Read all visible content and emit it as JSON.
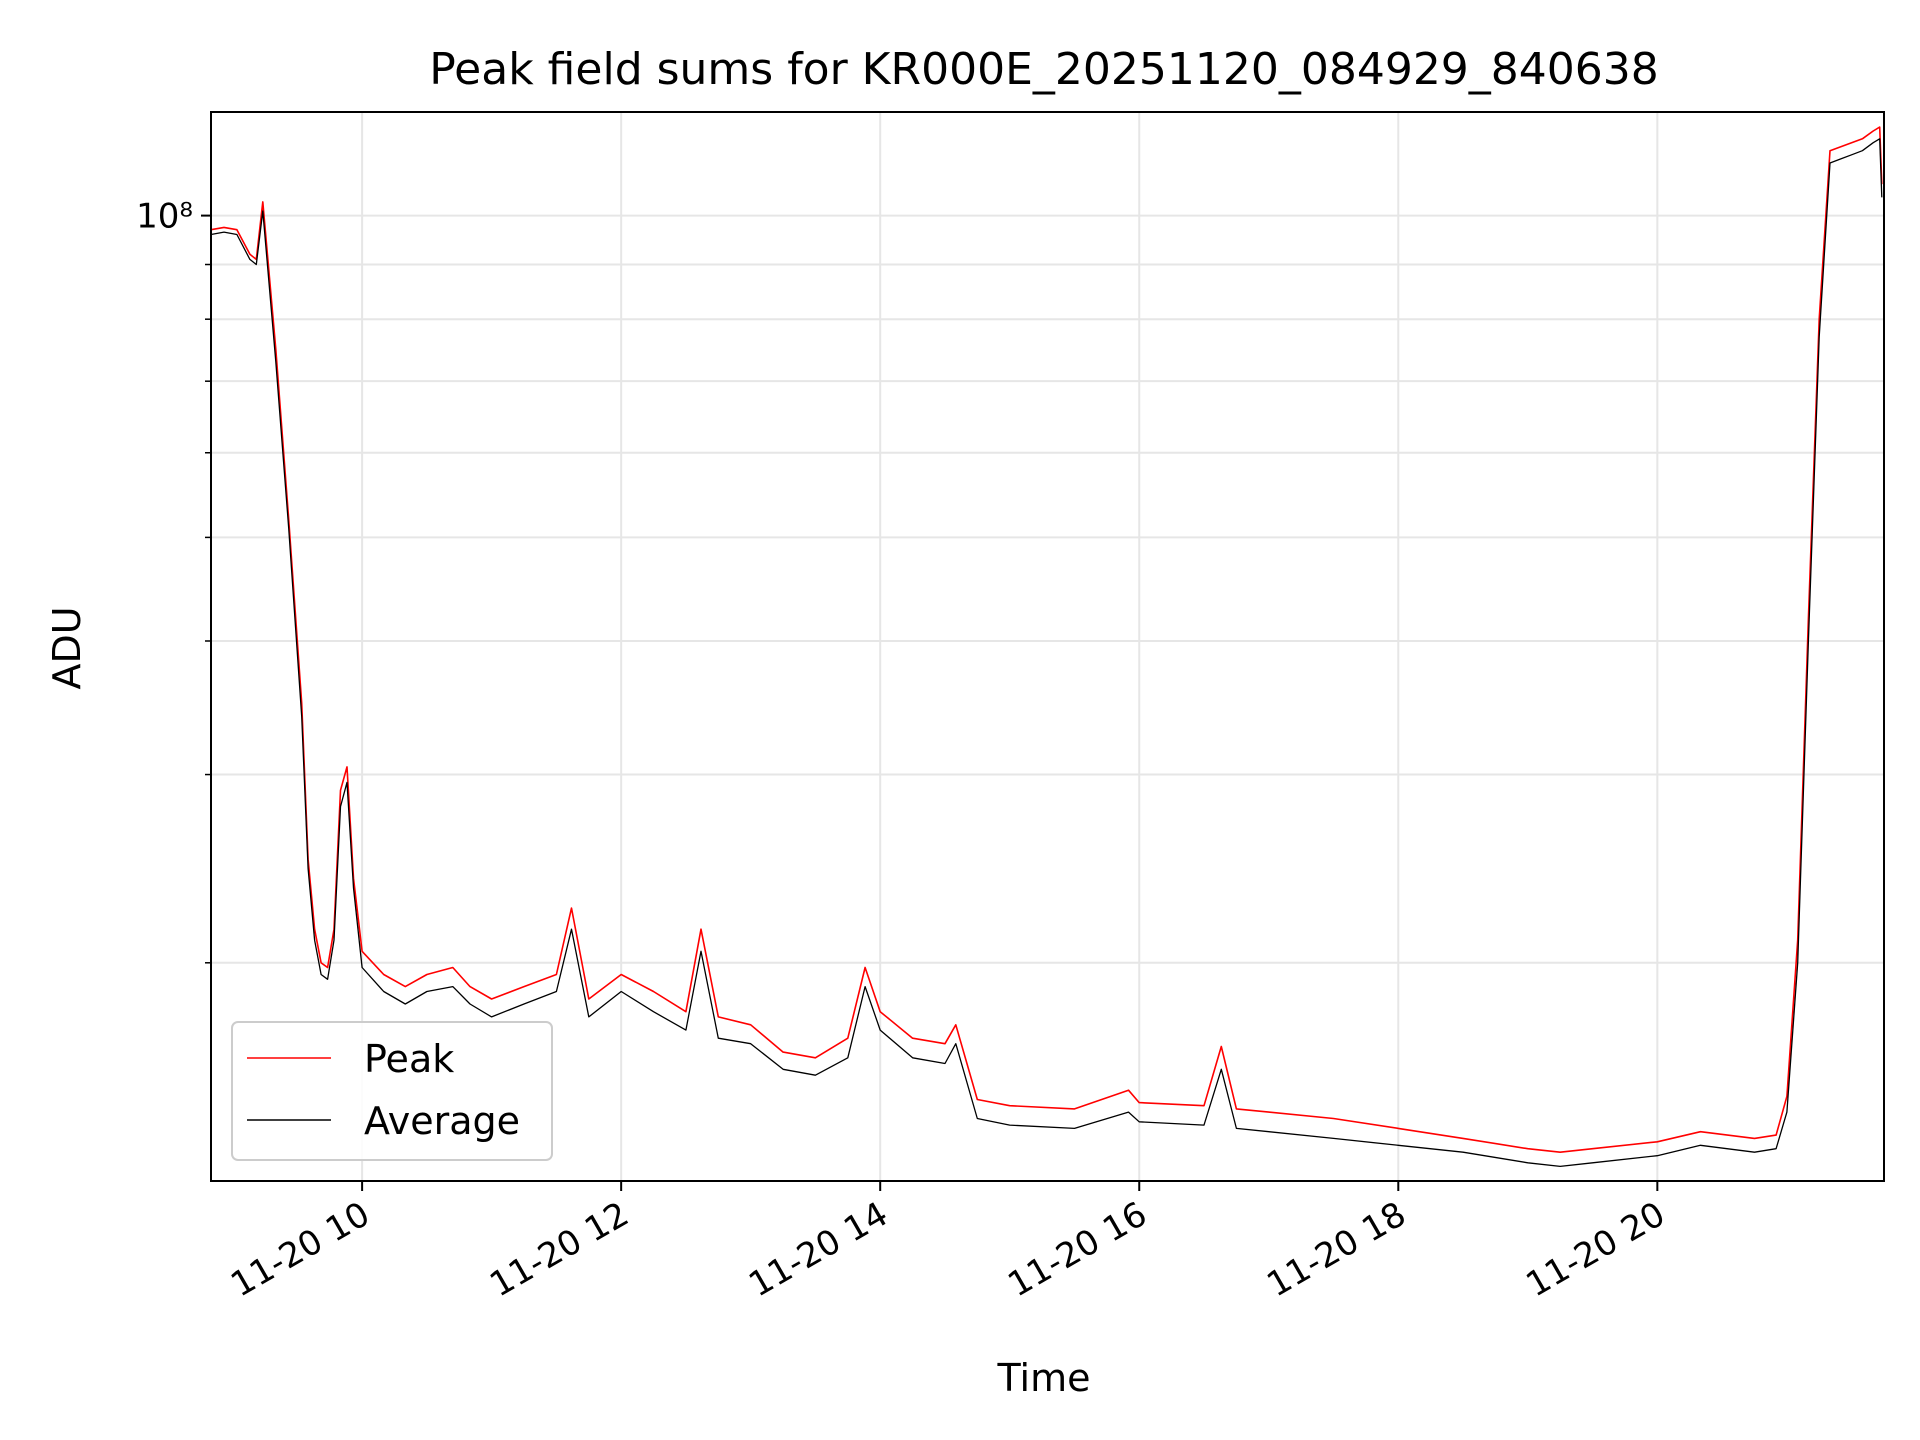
{
  "chart_data": {
    "type": "line",
    "title": "Peak field sums for KR000E_20251120_084929_840638",
    "xlabel": "Time",
    "ylabel": "ADU",
    "yscale": "log",
    "grid": true,
    "legend_position": "lower-left",
    "x_tick_labels": [
      "11-20 10",
      "11-20 12",
      "11-20 14",
      "11-20 16",
      "11-20 18",
      "11-20 20"
    ],
    "x_tick_values": [
      "2025-11-20 10:00",
      "2025-11-20 12:00",
      "2025-11-20 14:00",
      "2025-11-20 16:00",
      "2025-11-20 18:00",
      "2025-11-20 20:00"
    ],
    "xlim": [
      "2025-11-20 08:50",
      "2025-11-20 21:45"
    ],
    "ylim": [
      12500000,
      125000000
    ],
    "y_major_tick_label": "10⁸",
    "y_major_tick_value": 100000000,
    "y_minor_tick_values": [
      20000000,
      30000000,
      40000000,
      50000000,
      60000000,
      70000000,
      80000000,
      90000000
    ],
    "series": [
      {
        "name": "Peak",
        "color": "#ff0000",
        "x": [
          "2025-11-20 08:50",
          "2025-11-20 08:56",
          "2025-11-20 09:02",
          "2025-11-20 09:08",
          "2025-11-20 09:11",
          "2025-11-20 09:14",
          "2025-11-20 09:20",
          "2025-11-20 09:26",
          "2025-11-20 09:32",
          "2025-11-20 09:35",
          "2025-11-20 09:38",
          "2025-11-20 09:41",
          "2025-11-20 09:44",
          "2025-11-20 09:47",
          "2025-11-20 09:50",
          "2025-11-20 09:53",
          "2025-11-20 09:56",
          "2025-11-20 10:00",
          "2025-11-20 10:10",
          "2025-11-20 10:20",
          "2025-11-20 10:30",
          "2025-11-20 10:42",
          "2025-11-20 10:50",
          "2025-11-20 11:00",
          "2025-11-20 11:15",
          "2025-11-20 11:30",
          "2025-11-20 11:37",
          "2025-11-20 11:45",
          "2025-11-20 12:00",
          "2025-11-20 12:15",
          "2025-11-20 12:30",
          "2025-11-20 12:37",
          "2025-11-20 12:45",
          "2025-11-20 13:00",
          "2025-11-20 13:15",
          "2025-11-20 13:30",
          "2025-11-20 13:45",
          "2025-11-20 13:53",
          "2025-11-20 14:00",
          "2025-11-20 14:15",
          "2025-11-20 14:30",
          "2025-11-20 14:35",
          "2025-11-20 14:45",
          "2025-11-20 15:00",
          "2025-11-20 15:30",
          "2025-11-20 15:55",
          "2025-11-20 16:00",
          "2025-11-20 16:30",
          "2025-11-20 16:38",
          "2025-11-20 16:45",
          "2025-11-20 17:00",
          "2025-11-20 17:30",
          "2025-11-20 18:00",
          "2025-11-20 18:30",
          "2025-11-20 19:00",
          "2025-11-20 19:15",
          "2025-11-20 19:30",
          "2025-11-20 20:00",
          "2025-11-20 20:20",
          "2025-11-20 20:45",
          "2025-11-20 20:55",
          "2025-11-20 21:00",
          "2025-11-20 21:05",
          "2025-11-20 21:10",
          "2025-11-20 21:15",
          "2025-11-20 21:20",
          "2025-11-20 21:25",
          "2025-11-20 21:30",
          "2025-11-20 21:35",
          "2025-11-20 21:40",
          "2025-11-20 21:43",
          "2025-11-20 21:44"
        ],
        "y": [
          97000000,
          97500000,
          97000000,
          92000000,
          91000000,
          103000000,
          75000000,
          52000000,
          35000000,
          25000000,
          21500000,
          20000000,
          19800000,
          21500000,
          29000000,
          30500000,
          24000000,
          20500000,
          19500000,
          19000000,
          19500000,
          19800000,
          19000000,
          18500000,
          19000000,
          19500000,
          22500000,
          18500000,
          19500000,
          18800000,
          18000000,
          21500000,
          17800000,
          17500000,
          16500000,
          16300000,
          17000000,
          19800000,
          18000000,
          17000000,
          16800000,
          17500000,
          14900000,
          14700000,
          14600000,
          15200000,
          14800000,
          14700000,
          16700000,
          14600000,
          14500000,
          14300000,
          14000000,
          13700000,
          13400000,
          13300000,
          13400000,
          13600000,
          13900000,
          13700000,
          13800000,
          15000000,
          21000000,
          42000000,
          80000000,
          115000000,
          116000000,
          117000000,
          118000000,
          120000000,
          121000000,
          107000000
        ]
      },
      {
        "name": "Average",
        "color": "#000000",
        "x": [
          "2025-11-20 08:50",
          "2025-11-20 08:56",
          "2025-11-20 09:02",
          "2025-11-20 09:08",
          "2025-11-20 09:11",
          "2025-11-20 09:14",
          "2025-11-20 09:20",
          "2025-11-20 09:26",
          "2025-11-20 09:32",
          "2025-11-20 09:35",
          "2025-11-20 09:38",
          "2025-11-20 09:41",
          "2025-11-20 09:44",
          "2025-11-20 09:47",
          "2025-11-20 09:50",
          "2025-11-20 09:53",
          "2025-11-20 09:56",
          "2025-11-20 10:00",
          "2025-11-20 10:10",
          "2025-11-20 10:20",
          "2025-11-20 10:30",
          "2025-11-20 10:42",
          "2025-11-20 10:50",
          "2025-11-20 11:00",
          "2025-11-20 11:15",
          "2025-11-20 11:30",
          "2025-11-20 11:37",
          "2025-11-20 11:45",
          "2025-11-20 12:00",
          "2025-11-20 12:15",
          "2025-11-20 12:30",
          "2025-11-20 12:37",
          "2025-11-20 12:45",
          "2025-11-20 13:00",
          "2025-11-20 13:15",
          "2025-11-20 13:30",
          "2025-11-20 13:45",
          "2025-11-20 13:53",
          "2025-11-20 14:00",
          "2025-11-20 14:15",
          "2025-11-20 14:30",
          "2025-11-20 14:35",
          "2025-11-20 14:45",
          "2025-11-20 15:00",
          "2025-11-20 15:30",
          "2025-11-20 15:55",
          "2025-11-20 16:00",
          "2025-11-20 16:30",
          "2025-11-20 16:38",
          "2025-11-20 16:45",
          "2025-11-20 17:00",
          "2025-11-20 17:30",
          "2025-11-20 18:00",
          "2025-11-20 18:30",
          "2025-11-20 19:00",
          "2025-11-20 19:15",
          "2025-11-20 19:30",
          "2025-11-20 20:00",
          "2025-11-20 20:20",
          "2025-11-20 20:45",
          "2025-11-20 20:55",
          "2025-11-20 21:00",
          "2025-11-20 21:05",
          "2025-11-20 21:10",
          "2025-11-20 21:15",
          "2025-11-20 21:20",
          "2025-11-20 21:25",
          "2025-11-20 21:30",
          "2025-11-20 21:35",
          "2025-11-20 21:40",
          "2025-11-20 21:43",
          "2025-11-20 21:44"
        ],
        "y": [
          96000000,
          96500000,
          96000000,
          91000000,
          90000000,
          101000000,
          73000000,
          51000000,
          34000000,
          24500000,
          21000000,
          19500000,
          19300000,
          21000000,
          28000000,
          29500000,
          23500000,
          19800000,
          18800000,
          18300000,
          18800000,
          19000000,
          18300000,
          17800000,
          18300000,
          18800000,
          21500000,
          17800000,
          18800000,
          18000000,
          17300000,
          20500000,
          17000000,
          16800000,
          15900000,
          15700000,
          16300000,
          19000000,
          17300000,
          16300000,
          16100000,
          16800000,
          14300000,
          14100000,
          14000000,
          14500000,
          14200000,
          14100000,
          15900000,
          14000000,
          13900000,
          13700000,
          13500000,
          13300000,
          13000000,
          12900000,
          13000000,
          13200000,
          13500000,
          13300000,
          13400000,
          14500000,
          20000000,
          40000000,
          77000000,
          112000000,
          113000000,
          114000000,
          115000000,
          117000000,
          118000000,
          104000000
        ]
      }
    ]
  }
}
